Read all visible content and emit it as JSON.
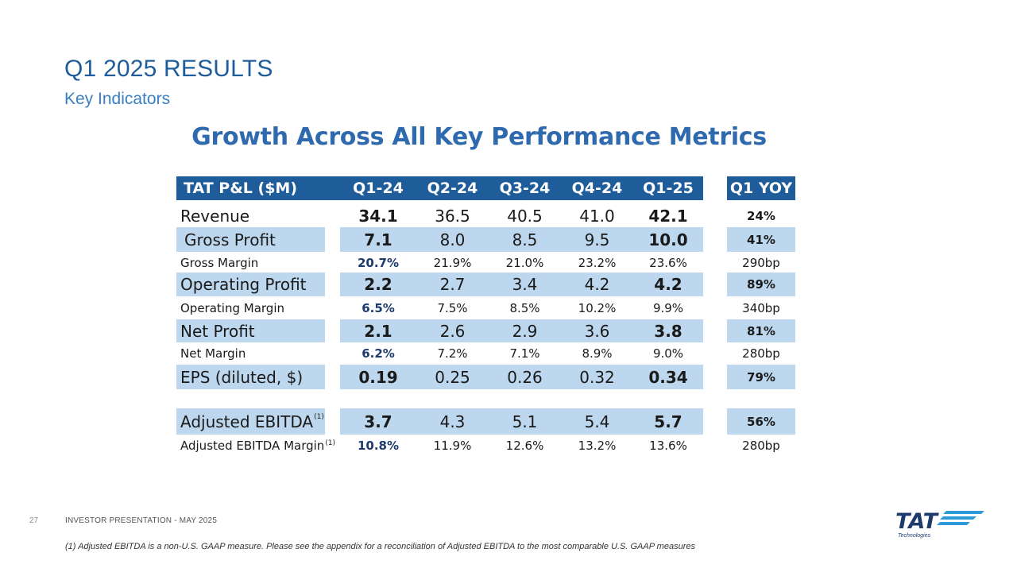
{
  "header": {
    "title": "Q1 2025 RESULTS",
    "subtitle": "Key Indicators",
    "headline": "Growth Across All Key Performance Metrics"
  },
  "table": {
    "label_header": "TAT P&L ($M)",
    "period_headers": [
      "Q1-24",
      "Q2-24",
      "Q3-24",
      "Q4-24",
      "Q1-25"
    ],
    "yoy_header": "Q1 YOY",
    "rows": [
      {
        "label": "Revenue",
        "values": [
          "34.1",
          "36.5",
          "40.5",
          "41.0",
          "42.1"
        ],
        "yoy": "24%"
      },
      {
        "label": "Gross Profit",
        "values": [
          "7.1",
          "8.0",
          "8.5",
          "9.5",
          "10.0"
        ],
        "yoy": "41%"
      },
      {
        "label": "Gross Margin",
        "values": [
          "20.7%",
          "21.9%",
          "21.0%",
          "23.2%",
          "23.6%"
        ],
        "yoy": "290bp"
      },
      {
        "label": "Operating Profit",
        "values": [
          "2.2",
          "2.7",
          "3.4",
          "4.2",
          "4.2"
        ],
        "yoy": "89%"
      },
      {
        "label": "Operating Margin",
        "values": [
          "6.5%",
          "7.5%",
          "8.5%",
          "10.2%",
          "9.9%"
        ],
        "yoy": "340bp"
      },
      {
        "label": "Net Profit",
        "values": [
          "2.1",
          "2.6",
          "2.9",
          "3.6",
          "3.8"
        ],
        "yoy": "81%"
      },
      {
        "label": "Net Margin",
        "values": [
          "6.2%",
          "7.2%",
          "7.1%",
          "8.9%",
          "9.0%"
        ],
        "yoy": "280bp"
      },
      {
        "label": "EPS (diluted, $)",
        "values": [
          "0.19",
          "0.25",
          "0.26",
          "0.32",
          "0.34"
        ],
        "yoy": "79%"
      },
      {
        "label": "Adjusted EBITDA",
        "note": "(1)",
        "values": [
          "3.7",
          "4.3",
          "5.1",
          "5.4",
          "5.7"
        ],
        "yoy": "56%"
      },
      {
        "label": "Adjusted EBITDA Margin",
        "note": "(1)",
        "values": [
          "10.8%",
          "11.9%",
          "12.6%",
          "13.2%",
          "13.6%"
        ],
        "yoy": "280bp"
      }
    ]
  },
  "footer": {
    "page_number": "27",
    "presentation": "INVESTOR PRESENTATION  -  MAY 2025",
    "footnote": "(1) Adjusted EBITDA is a non-U.S. GAAP measure. Please see the appendix for a reconciliation of Adjusted EBITDA to the most comparable U.S. GAAP measures"
  },
  "logo": {
    "wordmark": "TAT",
    "tagline": "Technologies",
    "color": "#1c3a6b",
    "accent": "#2e9ad6"
  },
  "colors": {
    "header_bg": "#1f5c9a",
    "row_shade": "#bdd7ee",
    "title": "#1f5c9a",
    "headline": "#2e6aad"
  }
}
